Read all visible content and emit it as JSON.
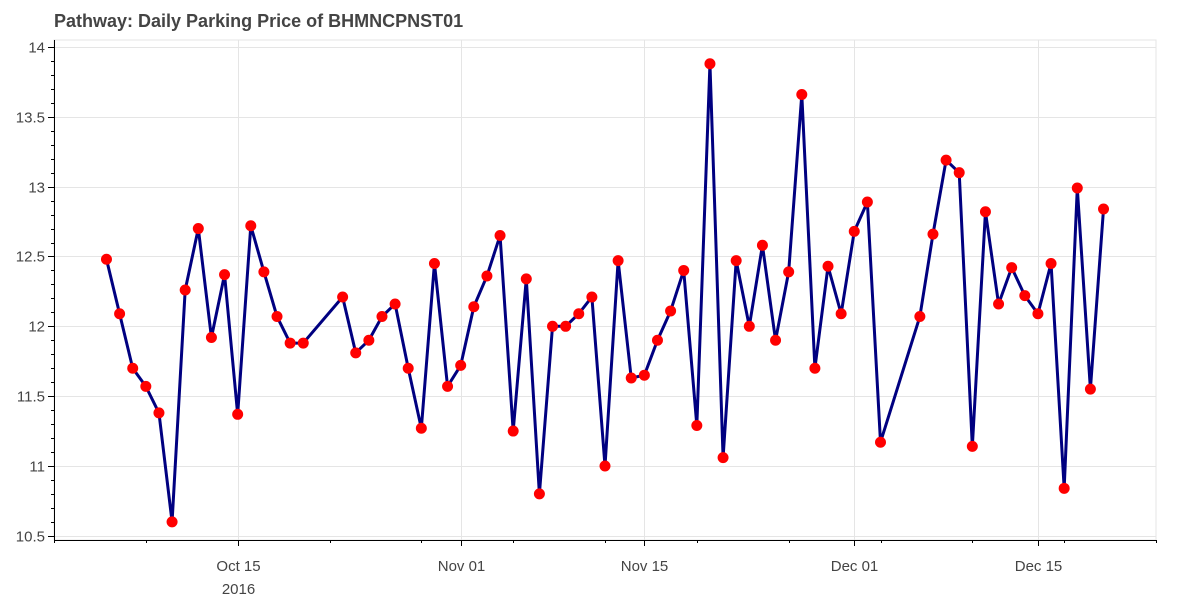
{
  "chart_data": {
    "type": "line",
    "title": "Pathway: Daily Parking Price of BHMNCPNST01",
    "xlabel": "",
    "ylabel": "",
    "x_type": "date",
    "ylim": [
      10.47,
      14.05
    ],
    "xlim": [
      "2016-10-01",
      "2016-12-24"
    ],
    "grid": true,
    "line_color": "#000080",
    "marker_color": "#ff0000",
    "y_ticks": [
      10.5,
      11,
      11.5,
      12,
      12.5,
      13,
      13.5,
      14
    ],
    "y_tick_labels": [
      "10.5",
      "11",
      "11.5",
      "12",
      "12.5",
      "13",
      "13.5",
      "14"
    ],
    "x_ticks": [
      "2016-10-15",
      "2016-11-01",
      "2016-11-15",
      "2016-12-01",
      "2016-12-15"
    ],
    "x_tick_labels": [
      "Oct 15",
      "Nov 01",
      "Nov 15",
      "Dec 01",
      "Dec 15"
    ],
    "x_tick_sublabels": [
      "2016",
      "",
      "",
      "",
      ""
    ],
    "series": [
      {
        "x": [
          "2016-10-05",
          "2016-10-06",
          "2016-10-07",
          "2016-10-08",
          "2016-10-09",
          "2016-10-10",
          "2016-10-11",
          "2016-10-12",
          "2016-10-13",
          "2016-10-14",
          "2016-10-15",
          "2016-10-16",
          "2016-10-17",
          "2016-10-18",
          "2016-10-19",
          "2016-10-20",
          "2016-10-23",
          "2016-10-24",
          "2016-10-25",
          "2016-10-26",
          "2016-10-27",
          "2016-10-28",
          "2016-10-29",
          "2016-10-30",
          "2016-10-31",
          "2016-11-01",
          "2016-11-02",
          "2016-11-03",
          "2016-11-04",
          "2016-11-05",
          "2016-11-06",
          "2016-11-07",
          "2016-11-08",
          "2016-11-09",
          "2016-11-10",
          "2016-11-11",
          "2016-11-12",
          "2016-11-13",
          "2016-11-14",
          "2016-11-15",
          "2016-11-16",
          "2016-11-17",
          "2016-11-18",
          "2016-11-19",
          "2016-11-20",
          "2016-11-21",
          "2016-11-22",
          "2016-11-23",
          "2016-11-24",
          "2016-11-25",
          "2016-11-26",
          "2016-11-27",
          "2016-11-28",
          "2016-11-29",
          "2016-11-30",
          "2016-12-01",
          "2016-12-02",
          "2016-12-03",
          "2016-12-06",
          "2016-12-07",
          "2016-12-08",
          "2016-12-09",
          "2016-12-10",
          "2016-12-11",
          "2016-12-12",
          "2016-12-13",
          "2016-12-14",
          "2016-12-15",
          "2016-12-16",
          "2016-12-17",
          "2016-12-18",
          "2016-12-19",
          "2016-12-20"
        ],
        "values": [
          12.48,
          12.09,
          11.7,
          11.57,
          11.38,
          10.6,
          12.26,
          12.7,
          11.92,
          12.37,
          11.37,
          12.72,
          12.39,
          12.07,
          11.88,
          11.88,
          12.21,
          11.81,
          11.9,
          12.07,
          12.16,
          11.7,
          11.27,
          12.45,
          11.57,
          11.72,
          12.14,
          12.36,
          12.65,
          11.25,
          12.34,
          10.8,
          12.0,
          12.0,
          12.09,
          12.21,
          11.0,
          12.47,
          11.63,
          11.65,
          11.9,
          12.11,
          12.4,
          11.29,
          13.88,
          11.06,
          12.47,
          12.0,
          12.58,
          11.9,
          12.39,
          13.66,
          11.7,
          12.43,
          12.09,
          12.68,
          12.89,
          11.17,
          12.07,
          12.66,
          13.19,
          13.1,
          11.14,
          12.82,
          12.16,
          12.42,
          12.22,
          12.09,
          12.45,
          10.84,
          12.99,
          11.55,
          12.84
        ]
      }
    ]
  }
}
